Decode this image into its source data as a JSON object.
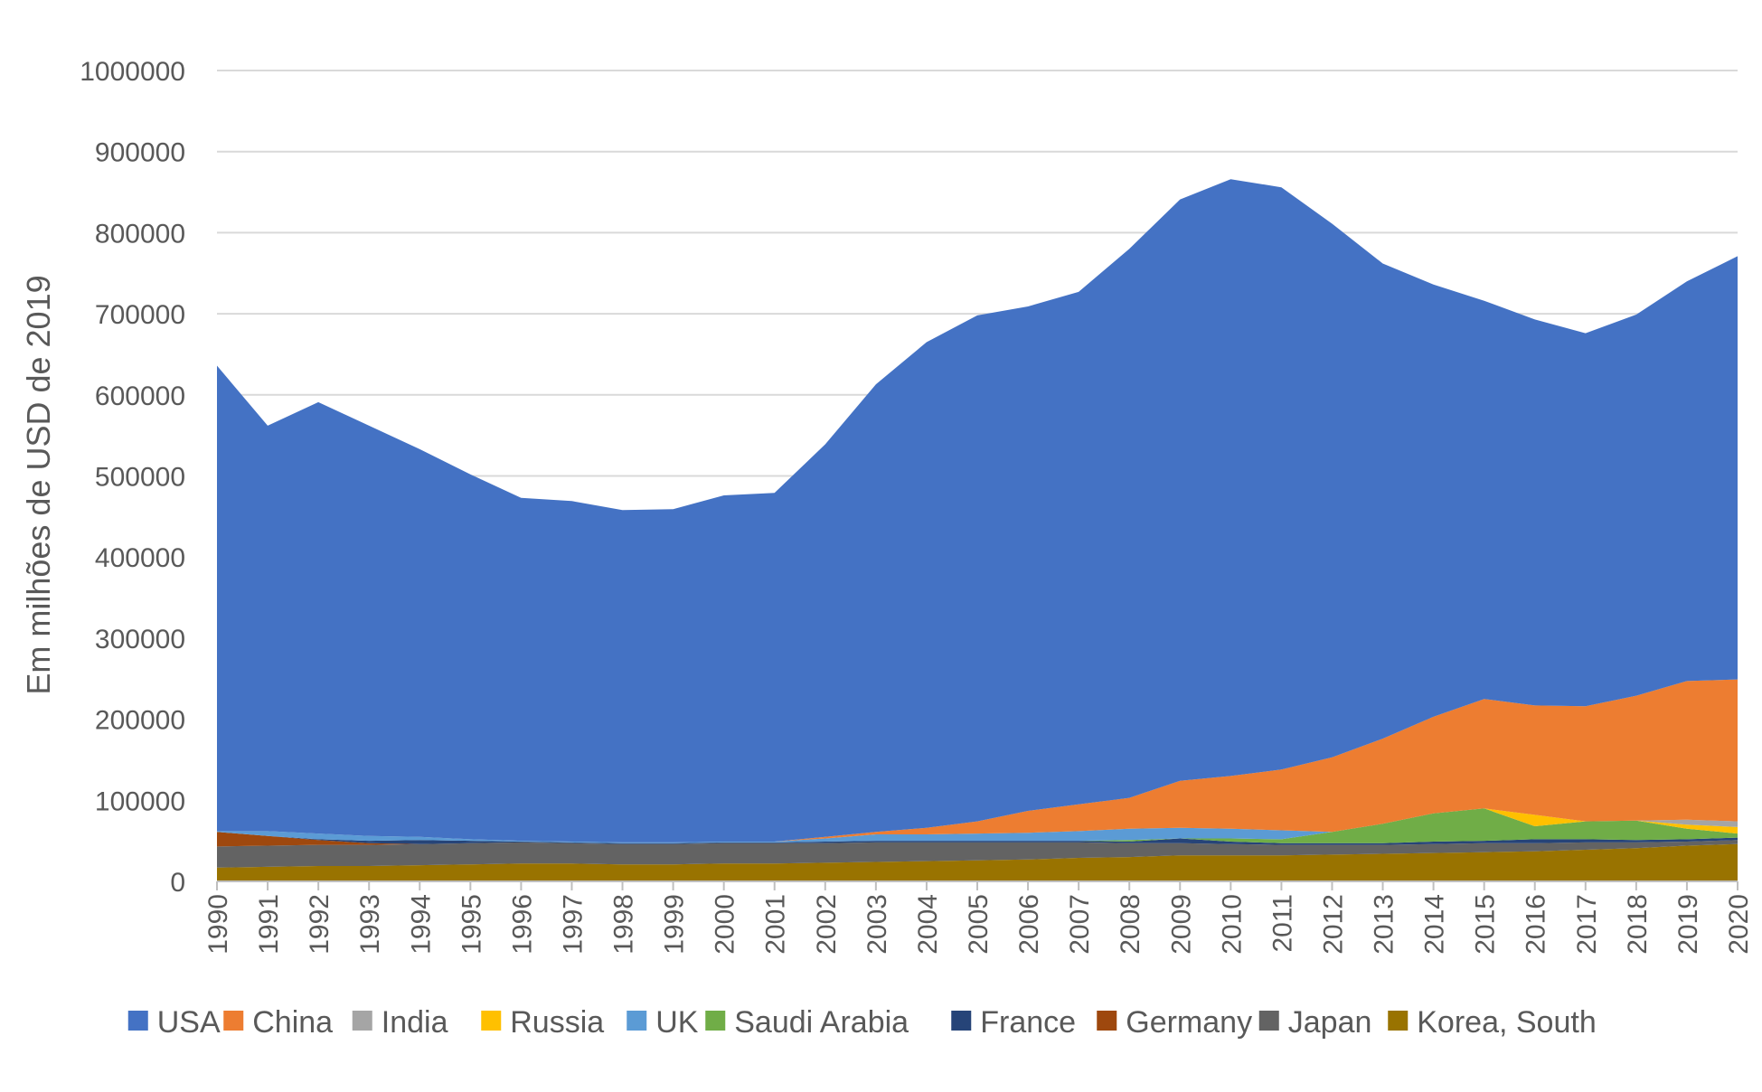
{
  "chart_data": {
    "type": "area",
    "stacked": true,
    "title": "",
    "xlabel": "",
    "ylabel": "Em milhões de USD de 2019",
    "ylim": [
      0,
      1000000
    ],
    "yticks": [
      0,
      100000,
      200000,
      300000,
      400000,
      500000,
      600000,
      700000,
      800000,
      900000,
      1000000
    ],
    "grid": true,
    "legend_position": "bottom",
    "x": [
      "1990",
      "1991",
      "1992",
      "1993",
      "1994",
      "1995",
      "1996",
      "1997",
      "1998",
      "1999",
      "2000",
      "2001",
      "2002",
      "2003",
      "2004",
      "2005",
      "2006",
      "2007",
      "2008",
      "2009",
      "2010",
      "2011",
      "2012",
      "2013",
      "2014",
      "2015",
      "2016",
      "2017",
      "2018",
      "2019",
      "2020"
    ],
    "series": [
      {
        "name": "Korea, South",
        "color": "#997300",
        "values": [
          17000,
          18000,
          19000,
          19000,
          20000,
          21000,
          22000,
          22000,
          21000,
          21000,
          22000,
          22000,
          23000,
          24000,
          25000,
          26000,
          27000,
          29000,
          30000,
          32000,
          32000,
          32000,
          33000,
          34000,
          35000,
          36000,
          37000,
          39000,
          41000,
          44000,
          46000
        ]
      },
      {
        "name": "Japan",
        "color": "#636363",
        "values": [
          26000,
          26000,
          26000,
          26000,
          26000,
          26000,
          26000,
          25000,
          25000,
          25000,
          25000,
          25000,
          24000,
          24000,
          23000,
          22000,
          21000,
          19000,
          17000,
          15000,
          14000,
          13000,
          12000,
          11000,
          11000,
          11000,
          10000,
          9000,
          7000,
          5000,
          5000
        ]
      },
      {
        "name": "Germany",
        "color": "#9E480E",
        "values": [
          18000,
          12000,
          6000,
          2000,
          0,
          0,
          0,
          0,
          0,
          0,
          0,
          0,
          0,
          0,
          0,
          0,
          0,
          0,
          0,
          0,
          0,
          0,
          0,
          0,
          0,
          0,
          0,
          0,
          0,
          0,
          0
        ]
      },
      {
        "name": "France",
        "color": "#264478",
        "values": [
          0,
          0,
          1000,
          3000,
          5000,
          3000,
          1000,
          1000,
          1000,
          1000,
          1000,
          1000,
          2000,
          2000,
          2000,
          2000,
          2000,
          2000,
          2000,
          6000,
          3000,
          2000,
          2000,
          2000,
          3000,
          3000,
          5000,
          4000,
          3000,
          3000,
          3000
        ]
      },
      {
        "name": "Saudi Arabia",
        "color": "#70AD47",
        "values": [
          0,
          0,
          0,
          0,
          0,
          0,
          0,
          0,
          0,
          0,
          0,
          0,
          0,
          0,
          0,
          0,
          0,
          0,
          2000,
          0,
          4000,
          5000,
          14000,
          24000,
          35000,
          40000,
          16000,
          22000,
          24000,
          13000,
          5000
        ]
      },
      {
        "name": "UK",
        "color": "#5B9BD5",
        "values": [
          1000,
          6000,
          7000,
          6000,
          4000,
          2000,
          1000,
          1000,
          1000,
          1000,
          1000,
          1000,
          4000,
          8000,
          8000,
          9000,
          10000,
          12000,
          14000,
          13000,
          12000,
          11000,
          0,
          0,
          0,
          0,
          0,
          0,
          0,
          0,
          0
        ]
      },
      {
        "name": "Russia",
        "color": "#FFC000",
        "values": [
          0,
          0,
          0,
          0,
          0,
          0,
          0,
          0,
          0,
          0,
          0,
          0,
          0,
          0,
          0,
          0,
          0,
          0,
          0,
          0,
          0,
          0,
          0,
          0,
          0,
          0,
          14000,
          0,
          0,
          5000,
          8000
        ]
      },
      {
        "name": "India",
        "color": "#A5A5A5",
        "values": [
          0,
          0,
          0,
          0,
          0,
          0,
          0,
          0,
          0,
          0,
          0,
          0,
          0,
          0,
          0,
          0,
          0,
          0,
          0,
          0,
          0,
          0,
          0,
          0,
          0,
          0,
          0,
          0,
          0,
          6000,
          7000
        ]
      },
      {
        "name": "China",
        "color": "#ED7D31",
        "values": [
          0,
          0,
          0,
          0,
          0,
          0,
          0,
          0,
          0,
          0,
          0,
          0,
          2000,
          3000,
          8000,
          15000,
          27000,
          33000,
          38000,
          58000,
          65000,
          75000,
          92000,
          105000,
          119000,
          135000,
          135000,
          142000,
          154000,
          171000,
          175000
        ]
      },
      {
        "name": "USA",
        "color": "#4472C4",
        "values": [
          574000,
          500000,
          532000,
          506000,
          478000,
          450000,
          423000,
          420000,
          410000,
          411000,
          427000,
          430000,
          484000,
          552000,
          599000,
          624000,
          622000,
          632000,
          677000,
          717000,
          736000,
          718000,
          658000,
          586000,
          533000,
          491000,
          476000,
          460000,
          470000,
          493000,
          522000
        ]
      }
    ],
    "legend": [
      "USA",
      "China",
      "India",
      "Russia",
      "UK",
      "Saudi Arabia",
      "France",
      "Germany",
      "Japan",
      "Korea, South"
    ]
  }
}
